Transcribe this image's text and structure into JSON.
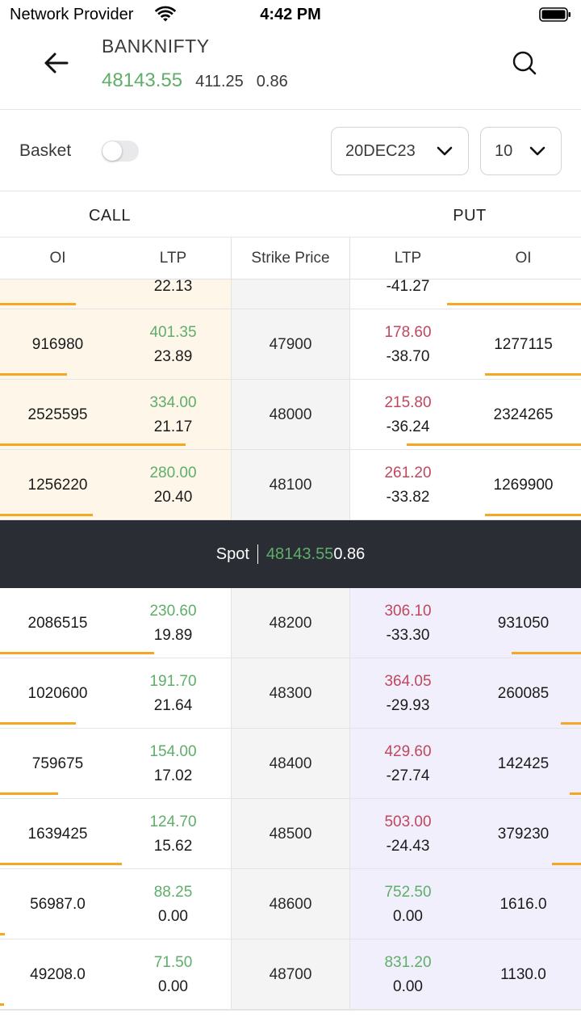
{
  "status_bar": {
    "provider": "Network Provider",
    "time": "4:42 PM",
    "wifi_icon": "wifi-icon",
    "battery_icon": "battery-icon"
  },
  "header": {
    "symbol": "BANKNIFTY",
    "ltp": "48143.55",
    "change": "411.25",
    "change_pct": "0.86",
    "back_icon": "arrow-left-icon",
    "search_icon": "search-icon"
  },
  "controls": {
    "basket_label": "Basket",
    "basket_enabled": false,
    "expiry": "20DEC23",
    "strike_count": "10"
  },
  "sections": {
    "call": "CALL",
    "put": "PUT"
  },
  "columns": {
    "oi_call": "OI",
    "ltp_call": "LTP",
    "strike": "Strike Price",
    "ltp_put": "LTP",
    "oi_put": "OI"
  },
  "spot": {
    "label": "Spot",
    "ltp": "48143.55",
    "change_pct": "0.86"
  },
  "colors": {
    "positive": "#5fae6a",
    "negative": "#c0475e",
    "oi_bar": "#f5a623",
    "itm_call_bg": "#fdf6e9",
    "itm_put_bg": "#f1effb",
    "spot_bg": "#2b2d35"
  },
  "rows_above_spot": [
    {
      "call_oi": "",
      "call_ltp": "",
      "call_pct": "22.13",
      "strike": "",
      "put_ltp": "",
      "put_pct": "-41.27",
      "put_oi": "",
      "call_oi_level": 0.13,
      "put_oi_level": 0.23,
      "put_ltp_dir": "down"
    },
    {
      "call_oi": "916980",
      "call_ltp": "401.35",
      "call_pct": "23.89",
      "strike": "47900",
      "put_ltp": "178.60",
      "put_pct": "-38.70",
      "put_oi": "1277115",
      "call_oi_level": 0.115,
      "put_oi_level": 0.165,
      "put_ltp_dir": "down"
    },
    {
      "call_oi": "2525595",
      "call_ltp": "334.00",
      "call_pct": "21.17",
      "strike": "48000",
      "put_ltp": "215.80",
      "put_pct": "-36.24",
      "put_oi": "2324265",
      "call_oi_level": 0.32,
      "put_oi_level": 0.3,
      "put_ltp_dir": "down"
    },
    {
      "call_oi": "1256220",
      "call_ltp": "280.00",
      "call_pct": "20.40",
      "strike": "48100",
      "put_ltp": "261.20",
      "put_pct": "-33.82",
      "put_oi": "1269900",
      "call_oi_level": 0.16,
      "put_oi_level": 0.165,
      "put_ltp_dir": "down"
    }
  ],
  "rows_below_spot": [
    {
      "call_oi": "2086515",
      "call_ltp": "230.60",
      "call_pct": "19.89",
      "strike": "48200",
      "put_ltp": "306.10",
      "put_pct": "-33.30",
      "put_oi": "931050",
      "call_oi_level": 0.265,
      "put_oi_level": 0.12,
      "put_ltp_dir": "down"
    },
    {
      "call_oi": "1020600",
      "call_ltp": "191.70",
      "call_pct": "21.64",
      "strike": "48300",
      "put_ltp": "364.05",
      "put_pct": "-29.93",
      "put_oi": "260085",
      "call_oi_level": 0.13,
      "put_oi_level": 0.035,
      "put_ltp_dir": "down"
    },
    {
      "call_oi": "759675",
      "call_ltp": "154.00",
      "call_pct": "17.02",
      "strike": "48400",
      "put_ltp": "429.60",
      "put_pct": "-27.74",
      "put_oi": "142425",
      "call_oi_level": 0.1,
      "put_oi_level": 0.02,
      "put_ltp_dir": "down"
    },
    {
      "call_oi": "1639425",
      "call_ltp": "124.70",
      "call_pct": "15.62",
      "strike": "48500",
      "put_ltp": "503.00",
      "put_pct": "-24.43",
      "put_oi": "379230",
      "call_oi_level": 0.21,
      "put_oi_level": 0.05,
      "put_ltp_dir": "down"
    },
    {
      "call_oi": "56987.0",
      "call_ltp": "88.25",
      "call_pct": "0.00",
      "strike": "48600",
      "put_ltp": "752.50",
      "put_pct": "0.00",
      "put_oi": "1616.0",
      "call_oi_level": 0.008,
      "put_oi_level": 0.0,
      "put_ltp_dir": "up"
    },
    {
      "call_oi": "49208.0",
      "call_ltp": "71.50",
      "call_pct": "0.00",
      "strike": "48700",
      "put_ltp": "831.20",
      "put_pct": "0.00",
      "put_oi": "1130.0",
      "call_oi_level": 0.007,
      "put_oi_level": 0.0,
      "put_ltp_dir": "up"
    }
  ]
}
